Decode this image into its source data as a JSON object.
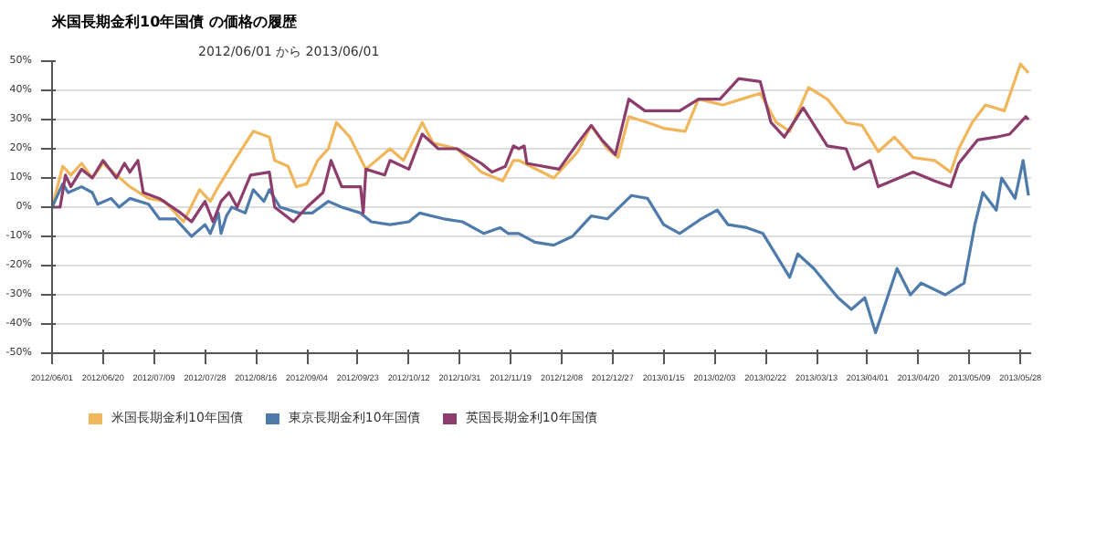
{
  "chart_data": {
    "type": "line",
    "title": "米国長期金利10年国債 の価格の履歴",
    "subtitle": "2012/06/01 から 2013/06/01",
    "xlim": [
      "2012-06-01",
      "2013-06-01"
    ],
    "xticks": [
      {
        "value": "2012-06-01",
        "label": "2012/06/01"
      },
      {
        "value": "2012-06-20",
        "label": "2012/06/20"
      },
      {
        "value": "2012-07-09",
        "label": "2012/07/09"
      },
      {
        "value": "2012-07-28",
        "label": "2012/07/28"
      },
      {
        "value": "2012-08-16",
        "label": "2012/08/16"
      },
      {
        "value": "2012-09-04",
        "label": "2012/09/04"
      },
      {
        "value": "2012-09-23",
        "label": "2012/09/23"
      },
      {
        "value": "2012-10-12",
        "label": "2012/10/12"
      },
      {
        "value": "2012-10-31",
        "label": "2012/10/31"
      },
      {
        "value": "2012-11-19",
        "label": "2012/11/19"
      },
      {
        "value": "2012-12-08",
        "label": "2012/12/08"
      },
      {
        "value": "2012-12-27",
        "label": "2012/12/27"
      },
      {
        "value": "2013-01-15",
        "label": "2013/01/15"
      },
      {
        "value": "2013-02-03",
        "label": "2013/02/03"
      },
      {
        "value": "2013-02-22",
        "label": "2013/02/22"
      },
      {
        "value": "2013-03-13",
        "label": "2013/03/13"
      },
      {
        "value": "2013-04-01",
        "label": "2013/04/01"
      },
      {
        "value": "2013-04-20",
        "label": "2013/04/20"
      },
      {
        "value": "2013-05-09",
        "label": "2013/05/09"
      },
      {
        "value": "2013-05-28",
        "label": "2013/05/28"
      }
    ],
    "ylim": [
      -50,
      50
    ],
    "yticks": [
      {
        "value": -50,
        "label": "-50%"
      },
      {
        "value": -40,
        "label": "-40%"
      },
      {
        "value": -30,
        "label": "-30%"
      },
      {
        "value": -20,
        "label": "-20%"
      },
      {
        "value": -10,
        "label": "-10%"
      },
      {
        "value": 0,
        "label": "0%"
      },
      {
        "value": 10,
        "label": "10%"
      },
      {
        "value": 20,
        "label": "20%"
      },
      {
        "value": 30,
        "label": "30%"
      },
      {
        "value": 40,
        "label": "40%"
      },
      {
        "value": 50,
        "label": "50%"
      }
    ],
    "grid": "y",
    "legend": "bottom",
    "marker": "none",
    "line_style": "solid",
    "series": [
      {
        "name": "米国長期金利10年国債",
        "color": "#f0b65c",
        "x": [
          "2012-06-01",
          "2012-06-05",
          "2012-06-08",
          "2012-06-12",
          "2012-06-16",
          "2012-06-20",
          "2012-06-25",
          "2012-06-30",
          "2012-07-07",
          "2012-07-13",
          "2012-07-20",
          "2012-07-26",
          "2012-07-30",
          "2012-08-02",
          "2012-08-08",
          "2012-08-15",
          "2012-08-21",
          "2012-08-23",
          "2012-08-28",
          "2012-08-31",
          "2012-09-04",
          "2012-09-08",
          "2012-09-12",
          "2012-09-15",
          "2012-09-20",
          "2012-09-26",
          "2012-10-05",
          "2012-10-10",
          "2012-10-17",
          "2012-10-21",
          "2012-10-30",
          "2012-11-08",
          "2012-11-16",
          "2012-11-20",
          "2012-11-22",
          "2012-12-05",
          "2012-12-14",
          "2012-12-19",
          "2012-12-25",
          "2012-12-29",
          "2013-01-02",
          "2013-01-09",
          "2013-01-15",
          "2013-01-23",
          "2013-01-28",
          "2013-02-06",
          "2013-02-13",
          "2013-02-20",
          "2013-02-26",
          "2013-03-03",
          "2013-03-10",
          "2013-03-17",
          "2013-03-24",
          "2013-03-30",
          "2013-04-05",
          "2013-04-11",
          "2013-04-18",
          "2013-04-26",
          "2013-05-02",
          "2013-05-05",
          "2013-05-10",
          "2013-05-15",
          "2013-05-22",
          "2013-05-28",
          "2013-05-31"
        ],
        "values": [
          0,
          14,
          11,
          15,
          10,
          15,
          11,
          7,
          3,
          2,
          -5,
          6,
          2,
          7,
          16,
          26,
          24,
          16,
          14,
          7,
          8,
          16,
          20,
          29,
          24,
          13,
          20,
          16,
          29,
          22,
          20,
          12,
          9,
          16,
          16,
          10,
          19,
          28,
          20,
          17,
          31,
          29,
          27,
          26,
          37,
          35,
          37,
          39,
          29,
          26,
          41,
          37,
          29,
          28,
          19,
          24,
          17,
          16,
          12,
          20,
          29,
          35,
          33,
          49,
          46
        ]
      },
      {
        "name": "東京長期金利10年国債",
        "color": "#4f7bab",
        "x": [
          "2012-06-01",
          "2012-06-05",
          "2012-06-07",
          "2012-06-12",
          "2012-06-16",
          "2012-06-18",
          "2012-06-23",
          "2012-06-26",
          "2012-06-30",
          "2012-07-07",
          "2012-07-11",
          "2012-07-17",
          "2012-07-23",
          "2012-07-28",
          "2012-07-30",
          "2012-08-02",
          "2012-08-03",
          "2012-08-05",
          "2012-08-07",
          "2012-08-12",
          "2012-08-15",
          "2012-08-19",
          "2012-08-21",
          "2012-08-25",
          "2012-09-01",
          "2012-09-06",
          "2012-09-12",
          "2012-09-17",
          "2012-09-24",
          "2012-09-28",
          "2012-10-05",
          "2012-10-12",
          "2012-10-16",
          "2012-10-25",
          "2012-11-01",
          "2012-11-09",
          "2012-11-15",
          "2012-11-18",
          "2012-11-22",
          "2012-11-28",
          "2012-12-05",
          "2012-12-12",
          "2012-12-19",
          "2012-12-25",
          "2013-01-03",
          "2013-01-09",
          "2013-01-15",
          "2013-01-21",
          "2013-01-29",
          "2013-02-04",
          "2013-02-08",
          "2013-02-15",
          "2013-02-21",
          "2013-03-03",
          "2013-03-06",
          "2013-03-12",
          "2013-03-21",
          "2013-03-26",
          "2013-03-31",
          "2013-04-04",
          "2013-04-08",
          "2013-04-12",
          "2013-04-17",
          "2013-04-21",
          "2013-04-30",
          "2013-05-07",
          "2013-05-11",
          "2013-05-14",
          "2013-05-19",
          "2013-05-21",
          "2013-05-26",
          "2013-05-29",
          "2013-05-31"
        ],
        "values": [
          0,
          8,
          5,
          7,
          5,
          1,
          3,
          0,
          3,
          1,
          -4,
          -4,
          -10,
          -6,
          -9,
          -2,
          -9,
          -3,
          0,
          -2,
          6,
          2,
          6,
          0,
          -2,
          -2,
          2,
          0,
          -2,
          -5,
          -6,
          -5,
          -2,
          -4,
          -5,
          -9,
          -7,
          -9,
          -9,
          -12,
          -13,
          -10,
          -3,
          -4,
          4,
          3,
          -6,
          -9,
          -4,
          -1,
          -6,
          -7,
          -9,
          -24,
          -16,
          -21,
          -31,
          -35,
          -31,
          -43,
          -32,
          -21,
          -30,
          -26,
          -30,
          -26,
          -6,
          5,
          -1,
          10,
          3,
          16,
          4
        ]
      },
      {
        "name": "英国長期金利10年国債",
        "color": "#8c3d6c",
        "x": [
          "2012-06-01",
          "2012-06-04",
          "2012-06-06",
          "2012-06-08",
          "2012-06-12",
          "2012-06-16",
          "2012-06-20",
          "2012-06-25",
          "2012-06-28",
          "2012-06-30",
          "2012-07-03",
          "2012-07-05",
          "2012-07-11",
          "2012-07-19",
          "2012-07-23",
          "2012-07-28",
          "2012-07-31",
          "2012-08-03",
          "2012-08-06",
          "2012-08-09",
          "2012-08-14",
          "2012-08-21",
          "2012-08-23",
          "2012-08-30",
          "2012-09-04",
          "2012-09-10",
          "2012-09-13",
          "2012-09-17",
          "2012-09-24",
          "2012-09-25",
          "2012-09-26",
          "2012-10-03",
          "2012-10-05",
          "2012-10-12",
          "2012-10-17",
          "2012-10-23",
          "2012-10-30",
          "2012-11-08",
          "2012-11-12",
          "2012-11-17",
          "2012-11-20",
          "2012-11-22",
          "2012-11-24",
          "2012-11-25",
          "2012-12-07",
          "2012-12-14",
          "2012-12-19",
          "2012-12-23",
          "2012-12-28",
          "2013-01-02",
          "2013-01-08",
          "2013-01-15",
          "2013-01-21",
          "2013-01-28",
          "2013-02-05",
          "2013-02-12",
          "2013-02-20",
          "2013-02-24",
          "2013-03-01",
          "2013-03-08",
          "2013-03-17",
          "2013-03-24",
          "2013-03-27",
          "2013-04-02",
          "2013-04-05",
          "2013-04-18",
          "2013-04-26",
          "2013-05-02",
          "2013-05-05",
          "2013-05-12",
          "2013-05-19",
          "2013-05-24",
          "2013-05-30",
          "2013-05-31"
        ],
        "values": [
          0,
          0,
          11,
          7,
          13,
          10,
          16,
          10,
          15,
          12,
          16,
          5,
          3,
          -2,
          -5,
          2,
          -5,
          2,
          5,
          0,
          11,
          12,
          0,
          -5,
          0,
          5,
          16,
          7,
          7,
          -2,
          13,
          11,
          16,
          13,
          25,
          20,
          20,
          15,
          12,
          14,
          21,
          20,
          21,
          15,
          13,
          22,
          28,
          23,
          18,
          37,
          33,
          33,
          33,
          37,
          37,
          44,
          43,
          29,
          24,
          34,
          21,
          20,
          13,
          16,
          7,
          12,
          9,
          7,
          15,
          23,
          24,
          25,
          31,
          30
        ]
      }
    ]
  }
}
